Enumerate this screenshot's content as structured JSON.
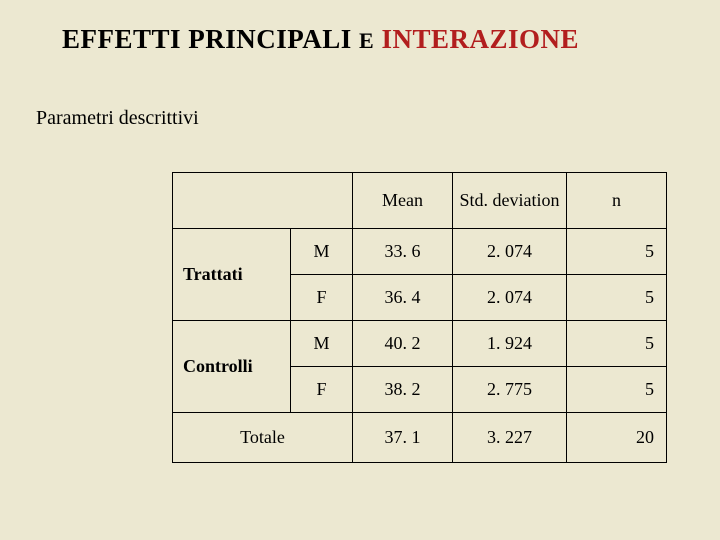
{
  "title": {
    "part1": "EFFETTI  PRINCIPALI",
    "small_e": "E",
    "part2": "INTERAZIONE"
  },
  "subtitle": "Parametri descrittivi",
  "table": {
    "headers": {
      "mean": "Mean",
      "std": "Std. deviation",
      "n": "n"
    },
    "groups": [
      {
        "label": "Trattati",
        "rows": [
          {
            "sub": "M",
            "mean": "33. 6",
            "std": "2. 074",
            "n": "5"
          },
          {
            "sub": "F",
            "mean": "36. 4",
            "std": "2. 074",
            "n": "5"
          }
        ]
      },
      {
        "label": "Controlli",
        "rows": [
          {
            "sub": "M",
            "mean": "40. 2",
            "std": "1. 924",
            "n": "5"
          },
          {
            "sub": "F",
            "mean": "38. 2",
            "std": "2. 775",
            "n": "5"
          }
        ]
      }
    ],
    "total": {
      "label": "Totale",
      "mean": "37. 1",
      "std": "3. 227",
      "n": "20"
    }
  },
  "colors": {
    "background": "#ece8d1",
    "text": "#000000",
    "accent": "#b21e1e",
    "border": "#000000"
  }
}
